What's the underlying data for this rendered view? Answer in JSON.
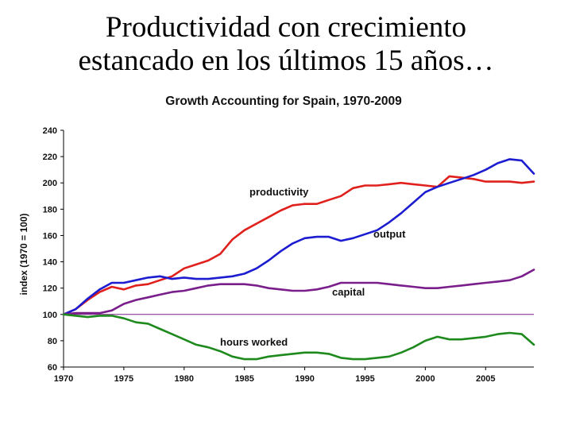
{
  "slide": {
    "title_line1": "Productividad con crecimiento",
    "title_line2": "estancado en los últimos 15 años…"
  },
  "chart_data": {
    "type": "line",
    "title": "Growth Accounting for Spain, 1970-2009",
    "xlabel": "",
    "ylabel": "index (1970 = 100)",
    "xlim": [
      1970,
      2009
    ],
    "ylim": [
      60,
      240
    ],
    "xticks": [
      1970,
      1975,
      1980,
      1985,
      1990,
      1995,
      2000,
      2005
    ],
    "yticks": [
      60,
      80,
      100,
      120,
      140,
      160,
      180,
      200,
      220,
      240
    ],
    "reference_line": 100,
    "x": [
      1970,
      1971,
      1972,
      1973,
      1974,
      1975,
      1976,
      1977,
      1978,
      1979,
      1980,
      1981,
      1982,
      1983,
      1984,
      1985,
      1986,
      1987,
      1988,
      1989,
      1990,
      1991,
      1992,
      1993,
      1994,
      1995,
      1996,
      1997,
      1998,
      1999,
      2000,
      2001,
      2002,
      2003,
      2004,
      2005,
      2006,
      2007,
      2008,
      2009
    ],
    "series": [
      {
        "name": "productivity",
        "color": "#e0201c",
        "values": [
          100,
          104,
          111,
          117,
          121,
          119,
          122,
          123,
          126,
          129,
          135,
          138,
          141,
          146,
          157,
          164,
          169,
          174,
          179,
          183,
          184,
          184,
          187,
          190,
          196,
          198,
          198,
          199,
          200,
          199,
          198,
          197,
          205,
          204,
          203,
          201,
          201,
          201,
          200,
          201
        ]
      },
      {
        "name": "output",
        "color": "#1c1cd0",
        "values": [
          100,
          104,
          112,
          119,
          124,
          124,
          126,
          128,
          129,
          127,
          128,
          127,
          127,
          128,
          129,
          131,
          135,
          141,
          148,
          154,
          158,
          159,
          159,
          156,
          158,
          161,
          164,
          170,
          177,
          185,
          193,
          197,
          200,
          203,
          206,
          210,
          215,
          218,
          217,
          207
        ]
      },
      {
        "name": "capital",
        "color": "#7a1e8c",
        "values": [
          100,
          101,
          101,
          101,
          103,
          108,
          111,
          113,
          115,
          117,
          118,
          120,
          122,
          123,
          123,
          123,
          122,
          120,
          119,
          118,
          118,
          119,
          121,
          124,
          124,
          124,
          124,
          123,
          122,
          121,
          120,
          120,
          121,
          122,
          123,
          124,
          125,
          126,
          129,
          134
        ]
      },
      {
        "name": "hours worked",
        "color": "#1e8a1e",
        "values": [
          100,
          99,
          98,
          99,
          99,
          97,
          94,
          93,
          89,
          85,
          81,
          77,
          75,
          72,
          68,
          66,
          66,
          68,
          69,
          70,
          71,
          71,
          70,
          67,
          66,
          66,
          67,
          68,
          71,
          75,
          80,
          83,
          81,
          81,
          82,
          83,
          85,
          86,
          85,
          77
        ]
      }
    ]
  },
  "colors": {
    "axis": "#000000",
    "reference_line": "#7a1e8c"
  }
}
